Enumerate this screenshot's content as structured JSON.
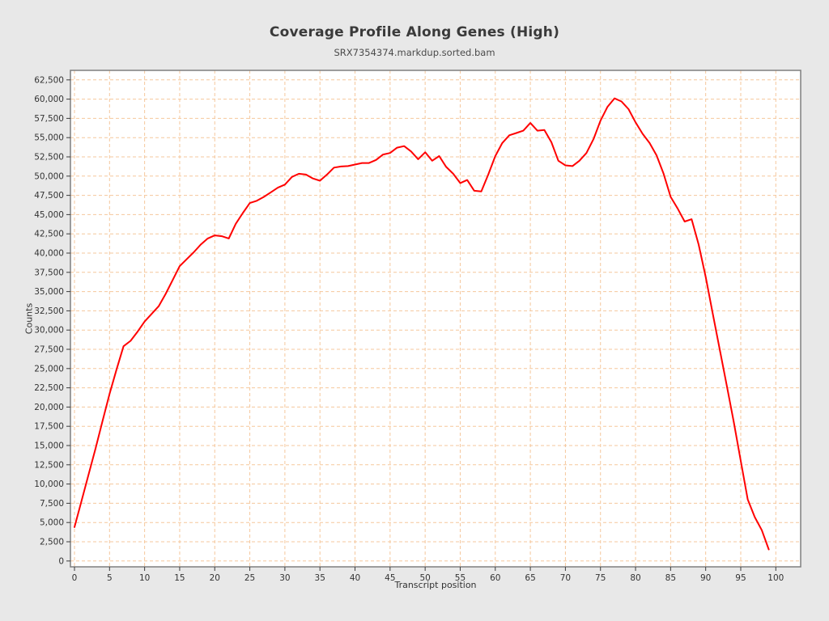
{
  "chart_data": {
    "type": "line",
    "title": "Coverage Profile Along Genes (High)",
    "subtitle": "SRX7354374.markdup.sorted.bam",
    "xlabel": "Transcript position",
    "ylabel": "Counts",
    "xlim": [
      0,
      100
    ],
    "ylim": [
      0,
      62500
    ],
    "xtick_step": 5,
    "ytick_step": 2500,
    "grid": true,
    "grid_style": "dashed",
    "legend": false,
    "colors": {
      "line": "#ff0000",
      "grid": "#f5c79c",
      "frame": "#7f7f7f",
      "tick": "#3c3c3c",
      "plot_bg": "#ffffff",
      "page_bg": "#e8e8e8",
      "title": "#3a3a3a",
      "tick_label": "#333333"
    },
    "series": [
      {
        "name": "SRX7354374.markdup.sorted.bam",
        "color": "#ff0000",
        "x": [
          0,
          1,
          2,
          3,
          4,
          5,
          6,
          7,
          8,
          9,
          10,
          11,
          12,
          13,
          14,
          15,
          16,
          17,
          18,
          19,
          20,
          21,
          22,
          23,
          24,
          25,
          26,
          27,
          28,
          29,
          30,
          31,
          32,
          33,
          34,
          35,
          36,
          37,
          38,
          39,
          40,
          41,
          42,
          43,
          44,
          45,
          46,
          47,
          48,
          49,
          50,
          51,
          52,
          53,
          54,
          55,
          56,
          57,
          58,
          59,
          60,
          61,
          62,
          63,
          64,
          65,
          66,
          67,
          68,
          69,
          70,
          71,
          72,
          73,
          74,
          75,
          76,
          77,
          78,
          79,
          80,
          81,
          82,
          83,
          84,
          85,
          86,
          87,
          88,
          89,
          90,
          91,
          92,
          93,
          94,
          95,
          96,
          97,
          98,
          99
        ],
        "y": [
          4400,
          7800,
          11200,
          14600,
          18200,
          21700,
          24900,
          27900,
          28600,
          29800,
          31100,
          32100,
          33100,
          34700,
          36500,
          38300,
          39200,
          40100,
          41100,
          41900,
          42300,
          42200,
          41900,
          43800,
          45200,
          46500,
          46800,
          47300,
          47900,
          48500,
          48900,
          49900,
          50300,
          50200,
          49700,
          49400,
          50200,
          51100,
          51250,
          51300,
          51500,
          51700,
          51700,
          52100,
          52800,
          53000,
          53700,
          53900,
          53200,
          52200,
          53100,
          52000,
          52600,
          51200,
          50300,
          49100,
          49500,
          48100,
          48000,
          50200,
          52600,
          54300,
          55300,
          55600,
          55900,
          56900,
          55900,
          56000,
          54400,
          52000,
          51400,
          51300,
          52000,
          53000,
          54800,
          57200,
          59000,
          60100,
          59700,
          58700,
          57000,
          55500,
          54300,
          52700,
          50300,
          47300,
          45800,
          44100,
          44400,
          41100,
          36900,
          32200,
          27500,
          22800,
          18100,
          13000,
          8000,
          5700,
          4000,
          1500
        ]
      }
    ]
  }
}
